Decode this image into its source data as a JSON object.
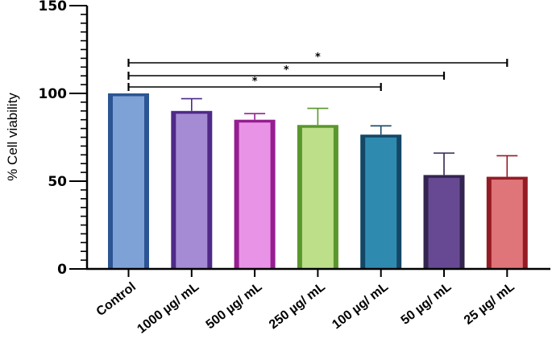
{
  "chart_data": {
    "type": "bar",
    "title": "",
    "xlabel": "",
    "ylabel": "% Cell viability",
    "ylim": [
      0,
      150
    ],
    "yticks": [
      0,
      50,
      100,
      150
    ],
    "yminor_step": 5,
    "grid": false,
    "legend": null,
    "categories": [
      "Control",
      "1000 µg/ mL",
      "500 µg/ mL",
      "250 µg/ mL",
      "100 µg/ mL",
      "50 µg/ mL",
      "25 µg/ mL"
    ],
    "values": [
      100,
      90,
      85,
      82,
      76.5,
      53.5,
      52.5
    ],
    "error_upper": [
      0,
      7,
      3.5,
      9.5,
      5,
      12.5,
      12
    ],
    "fill_colors": [
      "#7fa2d6",
      "#a58bd3",
      "#e993e6",
      "#bddf8a",
      "#2f8ab0",
      "#674993",
      "#df7479"
    ],
    "edge_colors": [
      "#2b5593",
      "#4f2a88",
      "#951e91",
      "#5a962c",
      "#134766",
      "#332550",
      "#941b24"
    ],
    "significance": [
      {
        "from": "Control",
        "to": "100 µg/ mL",
        "label": "*"
      },
      {
        "from": "Control",
        "to": "50 µg/ mL",
        "label": "*"
      },
      {
        "from": "Control",
        "to": "25 µg/ mL",
        "label": "*"
      }
    ]
  }
}
